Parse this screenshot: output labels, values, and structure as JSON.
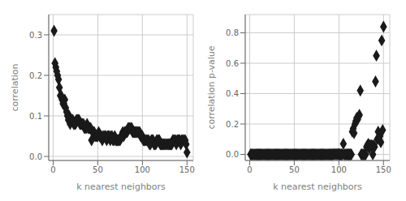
{
  "chart_data": [
    {
      "type": "scatter",
      "xlabel": "k nearest neighbors",
      "ylabel": "correlation",
      "color": "#1a1a1a",
      "marker": "diamond",
      "grid": true,
      "xlim": [
        -5,
        157
      ],
      "xticks": [
        0,
        50,
        100,
        150
      ],
      "ylim": [
        -0.01,
        0.35
      ],
      "yticks": [
        {
          "value": 0,
          "label": "0.0"
        },
        0.1,
        0.2,
        0.3
      ],
      "x": [
        1,
        2,
        3,
        4,
        5,
        6,
        7,
        8,
        9,
        10,
        11,
        12,
        13,
        14,
        15,
        16,
        17,
        18,
        19,
        20,
        21,
        22,
        23,
        24,
        25,
        26,
        27,
        28,
        29,
        30,
        31,
        32,
        33,
        34,
        35,
        36,
        37,
        38,
        39,
        40,
        41,
        42,
        43,
        44,
        45,
        46,
        47,
        48,
        49,
        50,
        51,
        52,
        53,
        54,
        55,
        56,
        57,
        58,
        59,
        60,
        61,
        62,
        63,
        64,
        65,
        66,
        67,
        68,
        69,
        70,
        71,
        72,
        73,
        74,
        75,
        76,
        77,
        78,
        79,
        80,
        81,
        82,
        83,
        84,
        85,
        86,
        87,
        88,
        89,
        90,
        91,
        92,
        93,
        94,
        95,
        96,
        97,
        98,
        99,
        100,
        101,
        102,
        103,
        104,
        105,
        106,
        107,
        108,
        109,
        110,
        111,
        112,
        113,
        114,
        115,
        116,
        117,
        118,
        119,
        120,
        121,
        122,
        123,
        124,
        125,
        126,
        127,
        128,
        129,
        130,
        131,
        132,
        133,
        134,
        135,
        136,
        137,
        138,
        139,
        140,
        141,
        142,
        143,
        144,
        145,
        146,
        147,
        148,
        149,
        150
      ],
      "values": [
        0.31,
        0.23,
        0.22,
        0.21,
        0.2,
        0.19,
        0.17,
        0.15,
        0.15,
        0.14,
        0.13,
        0.13,
        0.14,
        0.12,
        0.11,
        0.1,
        0.09,
        0.1,
        0.08,
        0.09,
        0.09,
        0.09,
        0.08,
        0.08,
        0.08,
        0.09,
        0.09,
        0.09,
        0.09,
        0.08,
        0.08,
        0.08,
        0.08,
        0.08,
        0.07,
        0.07,
        0.07,
        0.08,
        0.07,
        0.07,
        0.07,
        0.07,
        0.04,
        0.06,
        0.06,
        0.06,
        0.05,
        0.05,
        0.05,
        0.05,
        0.06,
        0.05,
        0.05,
        0.05,
        0.04,
        0.05,
        0.05,
        0.05,
        0.05,
        0.04,
        0.05,
        0.05,
        0.05,
        0.04,
        0.05,
        0.05,
        0.04,
        0.04,
        0.05,
        0.04,
        0.04,
        0.04,
        0.04,
        0.04,
        0.04,
        0.05,
        0.05,
        0.06,
        0.05,
        0.06,
        0.06,
        0.06,
        0.06,
        0.07,
        0.07,
        0.07,
        0.07,
        0.07,
        0.06,
        0.06,
        0.06,
        0.06,
        0.06,
        0.06,
        0.06,
        0.06,
        0.06,
        0.05,
        0.05,
        0.05,
        0.04,
        0.04,
        0.04,
        0.04,
        0.04,
        0.04,
        0.04,
        0.03,
        0.03,
        0.04,
        0.04,
        0.04,
        0.03,
        0.03,
        0.03,
        0.04,
        0.04,
        0.04,
        0.04,
        0.03,
        0.03,
        0.03,
        0.03,
        0.03,
        0.03,
        0.03,
        0.03,
        0.03,
        0.03,
        0.03,
        0.03,
        0.03,
        0.03,
        0.04,
        0.04,
        0.04,
        0.04,
        0.03,
        0.04,
        0.04,
        0.04,
        0.04,
        0.03,
        0.04,
        0.04,
        0.04,
        0.04,
        0.04,
        0.03,
        0.01
      ]
    },
    {
      "type": "scatter",
      "xlabel": "k nearest neighbors",
      "ylabel": "correlation p-value",
      "color": "#1a1a1a",
      "marker": "diamond",
      "grid": true,
      "xlim": [
        -5,
        157
      ],
      "xticks": [
        0,
        50,
        100,
        150
      ],
      "ylim": [
        -0.04,
        0.92
      ],
      "yticks": [
        {
          "value": 0,
          "label": "0.0"
        },
        0.2,
        0.4,
        0.6,
        0.8
      ],
      "x": [
        1,
        2,
        3,
        4,
        5,
        6,
        7,
        8,
        9,
        10,
        11,
        12,
        13,
        14,
        15,
        16,
        17,
        18,
        19,
        20,
        21,
        22,
        23,
        24,
        25,
        26,
        27,
        28,
        29,
        30,
        31,
        32,
        33,
        34,
        35,
        36,
        37,
        38,
        39,
        40,
        41,
        42,
        43,
        44,
        45,
        46,
        47,
        48,
        49,
        50,
        51,
        52,
        53,
        54,
        55,
        56,
        57,
        58,
        59,
        60,
        61,
        62,
        63,
        64,
        65,
        66,
        67,
        68,
        69,
        70,
        71,
        72,
        73,
        74,
        75,
        76,
        77,
        78,
        79,
        80,
        81,
        82,
        83,
        84,
        85,
        86,
        87,
        88,
        89,
        90,
        91,
        92,
        93,
        94,
        95,
        96,
        97,
        98,
        99,
        100,
        101,
        102,
        103,
        104,
        105,
        106,
        107,
        108,
        109,
        110,
        111,
        112,
        113,
        114,
        115,
        116,
        117,
        118,
        119,
        120,
        121,
        122,
        123,
        124,
        125,
        126,
        127,
        128,
        129,
        130,
        131,
        132,
        133,
        134,
        135,
        136,
        137,
        138,
        139,
        140,
        141,
        142,
        143,
        144,
        145,
        146,
        147,
        148,
        149,
        150
      ],
      "values": [
        0.0,
        0.0,
        0.0,
        0.0,
        0.0,
        0.0,
        0.0,
        0.0,
        0.0,
        0.0,
        0.0,
        0.0,
        0.0,
        0.0,
        0.0,
        0.0,
        0.0,
        0.0,
        0.0,
        0.0,
        0.0,
        0.0,
        0.0,
        0.0,
        0.0,
        0.0,
        0.0,
        0.0,
        0.0,
        0.0,
        0.0,
        0.0,
        0.0,
        0.0,
        0.0,
        0.0,
        0.0,
        0.0,
        0.0,
        0.0,
        0.0,
        0.0,
        0.0,
        0.0,
        0.0,
        0.0,
        0.0,
        0.0,
        0.0,
        0.0,
        0.0,
        0.0,
        0.0,
        0.0,
        0.0,
        0.0,
        0.0,
        0.0,
        0.0,
        0.0,
        0.0,
        0.0,
        0.0,
        0.0,
        0.0,
        0.0,
        0.0,
        0.0,
        0.0,
        0.0,
        0.0,
        0.0,
        0.0,
        0.0,
        0.0,
        0.0,
        0.0,
        0.0,
        0.0,
        0.0,
        0.0,
        0.0,
        0.0,
        0.0,
        0.0,
        0.0,
        0.0,
        0.0,
        0.0,
        0.0,
        0.0,
        0.0,
        0.0,
        0.001,
        0.001,
        0.001,
        0.001,
        0.001,
        0.001,
        0.001,
        0.0,
        0.0,
        0.0,
        0.0,
        0.07,
        0.0,
        0.0,
        0.0,
        0.0,
        0.0,
        0.0,
        0.0,
        0.0,
        0.0,
        0.15,
        0.17,
        0.14,
        0.2,
        0.22,
        0.24,
        0.23,
        0.25,
        0.26,
        0.42,
        0.0,
        0.0,
        0.0,
        0.0,
        0.0,
        0.0,
        0.05,
        0.06,
        0.07,
        0.04,
        0.06,
        0.06,
        0.06,
        0.0,
        0.06,
        0.05,
        0.48,
        0.65,
        0.1,
        0.15,
        0.1,
        0.12,
        0.08,
        0.75,
        0.16,
        0.84
      ]
    }
  ]
}
